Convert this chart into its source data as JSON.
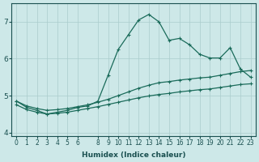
{
  "xlabel": "Humidex (Indice chaleur)",
  "ylabel": "",
  "bg_color": "#cde8e8",
  "grid_color": "#aacccc",
  "line_color": "#1a6b5a",
  "x": [
    0,
    1,
    2,
    3,
    4,
    5,
    6,
    7,
    8,
    9,
    10,
    11,
    12,
    13,
    14,
    15,
    16,
    17,
    18,
    19,
    20,
    21,
    22,
    23
  ],
  "y_main": [
    4.85,
    4.68,
    4.6,
    4.5,
    4.55,
    4.6,
    4.68,
    4.72,
    4.85,
    5.55,
    6.25,
    6.65,
    7.05,
    7.2,
    7.0,
    6.5,
    6.55,
    6.38,
    6.12,
    6.02,
    6.02,
    6.3,
    5.72,
    5.5
  ],
  "y_upper": [
    4.85,
    4.72,
    4.65,
    4.6,
    4.62,
    4.65,
    4.7,
    4.75,
    4.82,
    4.9,
    5.0,
    5.1,
    5.2,
    5.28,
    5.35,
    5.38,
    5.42,
    5.45,
    5.48,
    5.5,
    5.55,
    5.6,
    5.65,
    5.68
  ],
  "y_lower": [
    4.75,
    4.62,
    4.55,
    4.5,
    4.52,
    4.55,
    4.6,
    4.65,
    4.7,
    4.76,
    4.82,
    4.88,
    4.94,
    4.99,
    5.03,
    5.06,
    5.1,
    5.13,
    5.16,
    5.18,
    5.22,
    5.26,
    5.3,
    5.32
  ],
  "ylim": [
    3.9,
    7.5
  ],
  "yticks": [
    4,
    5,
    6,
    7
  ],
  "xticks": [
    0,
    1,
    2,
    3,
    4,
    5,
    6,
    8,
    9,
    10,
    11,
    12,
    13,
    14,
    15,
    16,
    17,
    18,
    19,
    20,
    21,
    22,
    23
  ],
  "marker": "+",
  "markersize": 3,
  "linewidth": 0.9
}
